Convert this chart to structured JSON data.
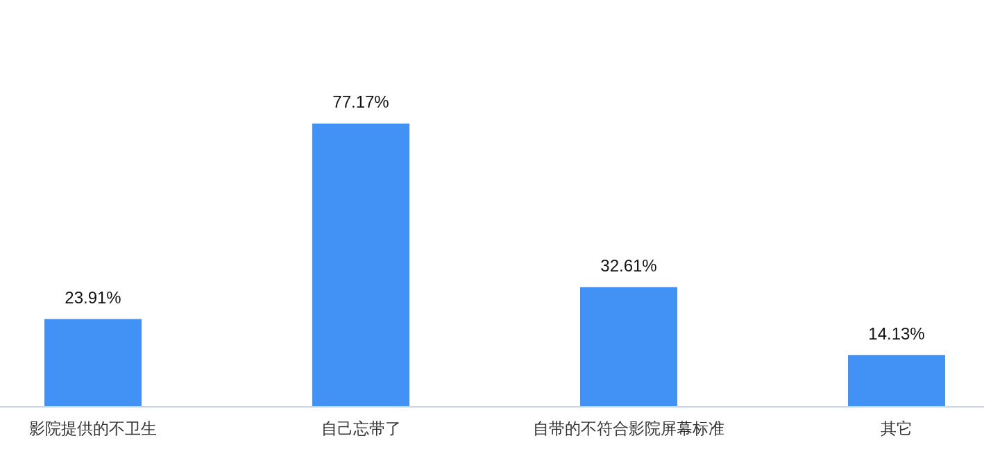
{
  "chart_data": {
    "type": "bar",
    "categories": [
      "影院提供的不卫生",
      "自己忘带了",
      "自带的不符合影院屏幕标准",
      "其它"
    ],
    "values": [
      23.91,
      77.17,
      32.61,
      14.13
    ],
    "value_labels": [
      "23.91%",
      "77.17%",
      "32.61%",
      "14.13%"
    ],
    "color": "#4292f6"
  }
}
